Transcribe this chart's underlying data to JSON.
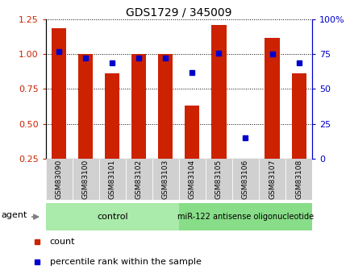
{
  "title": "GDS1729 / 345009",
  "samples": [
    "GSM83090",
    "GSM83100",
    "GSM83101",
    "GSM83102",
    "GSM83103",
    "GSM83104",
    "GSM83105",
    "GSM83106",
    "GSM83107",
    "GSM83108"
  ],
  "count_values": [
    1.19,
    1.0,
    0.86,
    1.0,
    1.0,
    0.63,
    1.21,
    0.24,
    1.12,
    0.86
  ],
  "percentile_values": [
    77,
    72,
    69,
    72,
    72,
    62,
    76,
    15,
    75,
    69
  ],
  "count_color": "#cc2200",
  "percentile_color": "#0000cc",
  "ylim_left": [
    0.25,
    1.25
  ],
  "ylim_right": [
    0,
    100
  ],
  "yticks_left": [
    0.25,
    0.5,
    0.75,
    1.0,
    1.25
  ],
  "yticks_right": [
    0,
    25,
    50,
    75,
    100
  ],
  "control_samples": 5,
  "group1_label": "control",
  "group2_label": "miR-122 antisense oligonucleotide",
  "group1_color": "#aaeaaa",
  "group2_color": "#88dd88",
  "bar_width": 0.55,
  "tick_label_color_left": "#cc2200",
  "tick_label_color_right": "#0000cc",
  "agent_label": "agent",
  "legend_count": "count",
  "legend_percentile": "percentile rank within the sample",
  "xlabel_fontsize": 7,
  "ylabel_fontsize": 8
}
